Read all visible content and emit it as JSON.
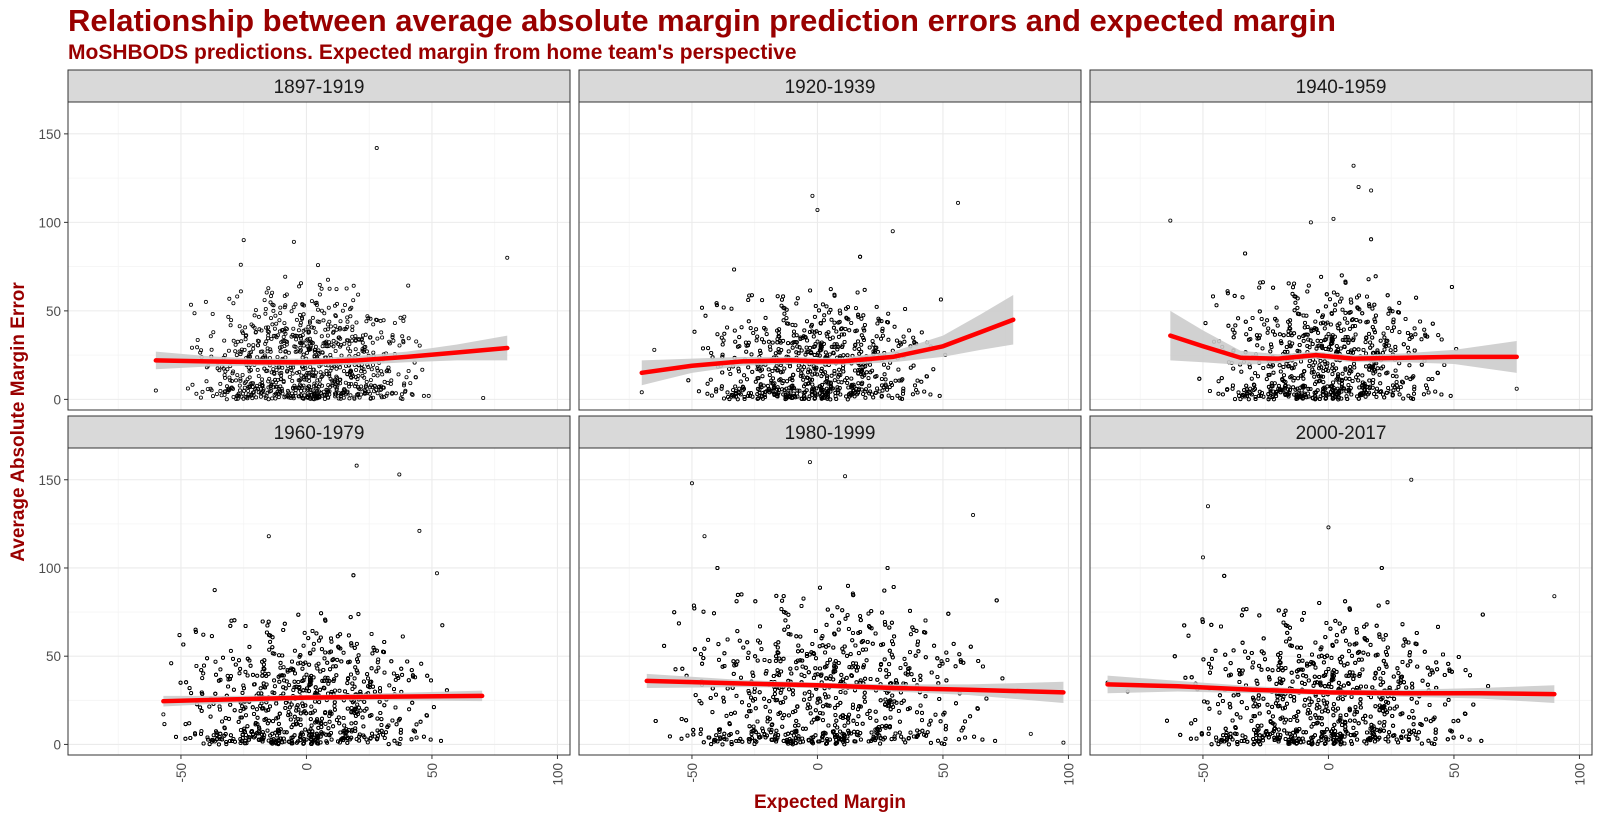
{
  "title": "Relationship between average absolute margin prediction errors and expected margin",
  "subtitle": "MoSHBODS predictions. Expected margin from home team's perspective",
  "colors": {
    "title": "#990000",
    "smooth_line": "#ff0000",
    "ribbon": "#cccccc",
    "points": "#000000",
    "strip_fill": "#d9d9d9",
    "grid": "#ebebeb"
  },
  "chart_data": {
    "type": "scatter",
    "overlay": "loess smooth with confidence band",
    "xlabel": "Expected Margin",
    "ylabel": "Average Absolute Margin Error",
    "xlim": [
      -95,
      105
    ],
    "ylim": [
      -6,
      168
    ],
    "x_ticks": [
      -50,
      0,
      50,
      100
    ],
    "x_tick_labels": [
      "-50",
      "0",
      "50",
      "100"
    ],
    "y_ticks": [
      0,
      50,
      100,
      150
    ],
    "y_tick_labels": [
      "0",
      "50",
      "100",
      "150"
    ],
    "grid": true,
    "layout": "facet 2 rows x 3 columns",
    "facets": [
      {
        "label": "1897-1919",
        "points": {
          "n": 900,
          "x_range": [
            -60,
            80
          ],
          "x_center": 0,
          "x_spread": 20,
          "y_mean": 22,
          "y_spread": 18
        },
        "outliers": [
          [
            28,
            142
          ],
          [
            -25,
            90
          ],
          [
            -5,
            89
          ],
          [
            80,
            80
          ],
          [
            -60,
            5
          ]
        ],
        "smooth": [
          [
            -60,
            22
          ],
          [
            -40,
            21.5
          ],
          [
            -20,
            21
          ],
          [
            0,
            21
          ],
          [
            20,
            22
          ],
          [
            40,
            24
          ],
          [
            60,
            26.5
          ],
          [
            80,
            29
          ]
        ],
        "band": [
          [
            -60,
            5
          ],
          [
            -40,
            3
          ],
          [
            -20,
            2
          ],
          [
            0,
            2
          ],
          [
            20,
            2.5
          ],
          [
            40,
            3
          ],
          [
            60,
            4.5
          ],
          [
            80,
            7
          ]
        ]
      },
      {
        "label": "1920-1939",
        "points": {
          "n": 1500,
          "x_range": [
            -70,
            78
          ],
          "x_center": 0,
          "x_spread": 20,
          "y_mean": 22,
          "y_spread": 17
        },
        "outliers": [
          [
            -2,
            115
          ],
          [
            56,
            111
          ],
          [
            0,
            107
          ],
          [
            30,
            95
          ],
          [
            -70,
            4
          ],
          [
            -65,
            28
          ]
        ],
        "smooth": [
          [
            -70,
            15
          ],
          [
            -50,
            19
          ],
          [
            -30,
            21.5
          ],
          [
            -10,
            22
          ],
          [
            0,
            21.5
          ],
          [
            10,
            21.5
          ],
          [
            30,
            24
          ],
          [
            50,
            30
          ],
          [
            65,
            38
          ],
          [
            78,
            45
          ]
        ],
        "band": [
          [
            -70,
            7
          ],
          [
            -50,
            4
          ],
          [
            -30,
            2.5
          ],
          [
            -10,
            2
          ],
          [
            0,
            2
          ],
          [
            10,
            2
          ],
          [
            30,
            3
          ],
          [
            50,
            6
          ],
          [
            65,
            10
          ],
          [
            78,
            14
          ]
        ]
      },
      {
        "label": "1940-1959",
        "points": {
          "n": 1700,
          "x_range": [
            -63,
            75
          ],
          "x_center": 0,
          "x_spread": 20,
          "y_mean": 25,
          "y_spread": 19
        },
        "outliers": [
          [
            -63,
            101
          ],
          [
            10,
            132
          ],
          [
            12,
            120
          ],
          [
            17,
            118
          ],
          [
            2,
            102
          ],
          [
            -7,
            100
          ],
          [
            75,
            6
          ]
        ],
        "smooth": [
          [
            -63,
            36
          ],
          [
            -50,
            30
          ],
          [
            -35,
            23.5
          ],
          [
            -20,
            23
          ],
          [
            -5,
            25
          ],
          [
            10,
            23
          ],
          [
            30,
            23.5
          ],
          [
            50,
            24
          ],
          [
            75,
            24
          ]
        ],
        "band": [
          [
            -63,
            14
          ],
          [
            -50,
            9
          ],
          [
            -35,
            4
          ],
          [
            -20,
            2.5
          ],
          [
            -5,
            2
          ],
          [
            10,
            2
          ],
          [
            30,
            2.5
          ],
          [
            50,
            4
          ],
          [
            75,
            9
          ]
        ]
      },
      {
        "label": "1960-1979",
        "points": {
          "n": 2000,
          "x_range": [
            -57,
            70
          ],
          "x_center": 0,
          "x_spread": 22,
          "y_mean": 27,
          "y_spread": 20
        },
        "outliers": [
          [
            20,
            158
          ],
          [
            37,
            153
          ],
          [
            -15,
            118
          ],
          [
            45,
            121
          ],
          [
            52,
            97
          ],
          [
            -57,
            17
          ]
        ],
        "smooth": [
          [
            -57,
            24.5
          ],
          [
            -30,
            25.5
          ],
          [
            0,
            26.5
          ],
          [
            30,
            27
          ],
          [
            70,
            27.5
          ]
        ],
        "band": [
          [
            -57,
            3
          ],
          [
            -30,
            2
          ],
          [
            0,
            1.5
          ],
          [
            30,
            2
          ],
          [
            70,
            3
          ]
        ]
      },
      {
        "label": "1980-1999",
        "points": {
          "n": 2400,
          "x_range": [
            -68,
            98
          ],
          "x_center": 5,
          "x_spread": 27,
          "y_mean": 33,
          "y_spread": 24
        },
        "outliers": [
          [
            -50,
            148
          ],
          [
            -3,
            160
          ],
          [
            11,
            152
          ],
          [
            62,
            130
          ],
          [
            -45,
            118
          ],
          [
            98,
            1
          ],
          [
            85,
            6
          ]
        ],
        "smooth": [
          [
            -68,
            36
          ],
          [
            -30,
            34.5
          ],
          [
            0,
            33.5
          ],
          [
            30,
            32
          ],
          [
            60,
            31
          ],
          [
            98,
            29.5
          ]
        ],
        "band": [
          [
            -68,
            4
          ],
          [
            -30,
            2
          ],
          [
            0,
            1.5
          ],
          [
            30,
            2
          ],
          [
            60,
            3
          ],
          [
            98,
            6
          ]
        ]
      },
      {
        "label": "2000-2017",
        "points": {
          "n": 3000,
          "x_range": [
            -88,
            90
          ],
          "x_center": 0,
          "x_spread": 25,
          "y_mean": 29,
          "y_spread": 22
        },
        "outliers": [
          [
            -48,
            135
          ],
          [
            33,
            150
          ],
          [
            0,
            123
          ],
          [
            -50,
            106
          ],
          [
            90,
            84
          ],
          [
            -80,
            30
          ],
          [
            -88,
            35
          ]
        ],
        "smooth": [
          [
            -88,
            34
          ],
          [
            -60,
            33
          ],
          [
            -30,
            31
          ],
          [
            0,
            29.5
          ],
          [
            30,
            29
          ],
          [
            60,
            29
          ],
          [
            90,
            28.5
          ]
        ],
        "band": [
          [
            -88,
            5
          ],
          [
            -60,
            3
          ],
          [
            -30,
            2
          ],
          [
            0,
            1.5
          ],
          [
            30,
            2
          ],
          [
            60,
            3
          ],
          [
            90,
            5
          ]
        ]
      }
    ]
  }
}
